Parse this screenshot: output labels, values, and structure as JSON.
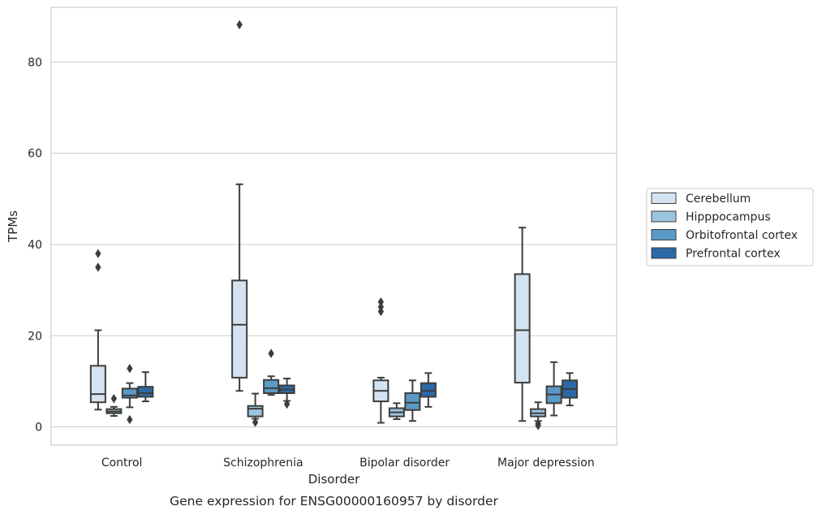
{
  "chart_data": {
    "type": "boxplot",
    "title": "",
    "caption": "Gene expression for ENSG00000160957 by disorder",
    "xlabel": "Disorder",
    "ylabel": "TPMs",
    "ylim": [
      -4,
      92
    ],
    "yticks": [
      0,
      20,
      40,
      60,
      80
    ],
    "ytick_labels": [
      "0",
      "20",
      "40",
      "60",
      "80"
    ],
    "grid": "horizontal",
    "legend_position": "right",
    "categories": [
      "Control",
      "Schizophrenia",
      "Bipolar disorder",
      "Major depression"
    ],
    "series": [
      {
        "name": "Cerebellum",
        "color": "#d4e3f2",
        "boxes": [
          {
            "whislo": 3.8,
            "q1": 5.4,
            "med": 7.2,
            "q3": 13.4,
            "whishi": 21.2,
            "fliers": [
              35,
              38
            ]
          },
          {
            "whislo": 7.9,
            "q1": 10.8,
            "med": 22.4,
            "q3": 32.1,
            "whishi": 53.2,
            "fliers": [
              88.2
            ]
          },
          {
            "whislo": 0.9,
            "q1": 5.6,
            "med": 7.9,
            "q3": 10.2,
            "whishi": 10.8,
            "fliers": [
              25.3,
              26.3,
              27.4
            ]
          },
          {
            "whislo": 1.3,
            "q1": 9.7,
            "med": 21.2,
            "q3": 33.5,
            "whishi": 43.7,
            "fliers": []
          }
        ]
      },
      {
        "name": "Hipppocampus",
        "color": "#9dc4de",
        "boxes": [
          {
            "whislo": 2.4,
            "q1": 3.0,
            "med": 3.4,
            "q3": 3.9,
            "whishi": 4.4,
            "fliers": [
              6.2
            ]
          },
          {
            "whislo": 1.8,
            "q1": 2.3,
            "med": 4.0,
            "q3": 4.6,
            "whishi": 7.3,
            "fliers": [
              1.0
            ]
          },
          {
            "whislo": 1.7,
            "q1": 2.3,
            "med": 3.2,
            "q3": 4.1,
            "whishi": 5.2,
            "fliers": []
          },
          {
            "whislo": 1.3,
            "q1": 2.3,
            "med": 3.0,
            "q3": 3.9,
            "whishi": 5.4,
            "fliers": [
              0.3,
              0.7
            ]
          }
        ]
      },
      {
        "name": "Orbitofrontal cortex",
        "color": "#5b9ac7",
        "boxes": [
          {
            "whislo": 4.3,
            "q1": 6.4,
            "med": 6.9,
            "q3": 8.4,
            "whishi": 9.6,
            "fliers": [
              12.8,
              1.6
            ]
          },
          {
            "whislo": 7.0,
            "q1": 7.4,
            "med": 8.5,
            "q3": 10.3,
            "whishi": 11.1,
            "fliers": [
              16.1
            ]
          },
          {
            "whislo": 1.3,
            "q1": 3.7,
            "med": 5.3,
            "q3": 7.4,
            "whishi": 10.2,
            "fliers": []
          },
          {
            "whislo": 2.5,
            "q1": 5.2,
            "med": 7.1,
            "q3": 8.9,
            "whishi": 14.2,
            "fliers": []
          }
        ]
      },
      {
        "name": "Prefrontal cortex",
        "color": "#2b68a6",
        "boxes": [
          {
            "whislo": 5.6,
            "q1": 6.6,
            "med": 7.4,
            "q3": 8.8,
            "whishi": 12.0,
            "fliers": []
          },
          {
            "whislo": 5.7,
            "q1": 7.4,
            "med": 8.2,
            "q3": 9.1,
            "whishi": 10.6,
            "fliers": [
              5.0
            ]
          },
          {
            "whislo": 4.4,
            "q1": 6.6,
            "med": 7.9,
            "q3": 9.6,
            "whishi": 11.8,
            "fliers": []
          },
          {
            "whislo": 4.7,
            "q1": 6.4,
            "med": 8.3,
            "q3": 10.2,
            "whishi": 11.8,
            "fliers": []
          }
        ]
      }
    ]
  }
}
